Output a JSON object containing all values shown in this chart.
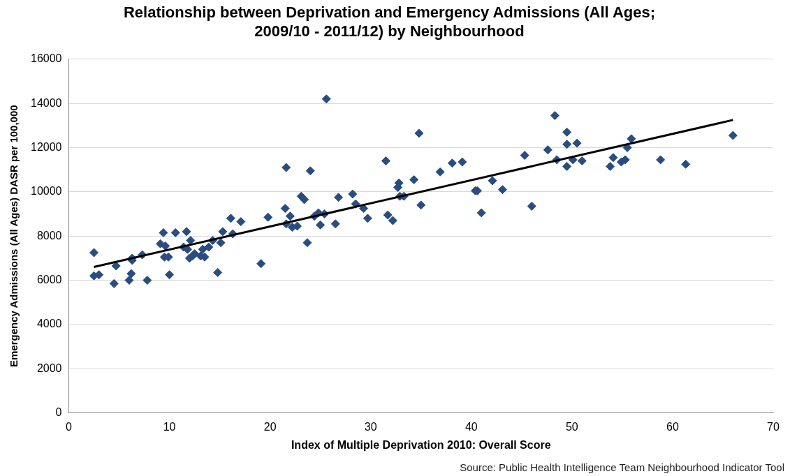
{
  "chart_data": {
    "type": "scatter",
    "title": "Relationship between Deprivation and Emergency Admissions (All Ages;\n2009/10 - 2011/12) by Neighbourhood",
    "xlabel": "Index of Multiple Deprivation 2010: Overall Score",
    "ylabel": "Emergency Admissions (All Ages) DASR per 100,000",
    "xlim": [
      0,
      70
    ],
    "xticks": [
      0,
      10,
      20,
      30,
      40,
      50,
      60,
      70
    ],
    "ylim": [
      0,
      16000
    ],
    "yticks": [
      0,
      2000,
      4000,
      6000,
      8000,
      10000,
      12000,
      14000,
      16000
    ],
    "grid": "y",
    "legend": false,
    "marker": "diamond",
    "annotations": [
      "Source: Public Health Intelligence Team Neighbourhood Indicator Tool"
    ],
    "series": [
      {
        "color": "#2a4d80",
        "x": [
          2.5,
          2.5,
          3,
          4.5,
          4.7,
          6,
          6.2,
          6.3,
          6.3,
          7.3,
          7.8,
          9.1,
          9.4,
          9.5,
          9.6,
          9.9,
          10,
          10.6,
          11.4,
          11.7,
          11.8,
          12,
          12.1,
          12.3,
          12.5,
          13.1,
          13.3,
          13.5,
          13.9,
          14.3,
          14.8,
          15.1,
          15.3,
          16.1,
          16.3,
          17.1,
          19.1,
          19.8,
          21.5,
          21.6,
          21.6,
          22,
          22.2,
          22.7,
          23.1,
          23.4,
          23.7,
          24,
          24.4,
          24.8,
          25,
          25.4,
          25.6,
          26.5,
          26.8,
          28.2,
          28.5,
          29.3,
          29.7,
          31.5,
          31.7,
          32.2,
          32.7,
          32.8,
          32.9,
          33.3,
          34.3,
          34.8,
          35,
          36.9,
          38.1,
          39.1,
          40.4,
          40.6,
          41,
          42.1,
          43.1,
          45.3,
          46,
          47.6,
          48.3,
          48.5,
          49.5,
          49.5,
          49.5,
          50.1,
          50.5,
          51,
          53.8,
          54.1,
          54.9,
          55.3,
          55.5,
          55.9,
          58.8,
          61.3,
          66
        ],
        "values": [
          7250,
          6200,
          6250,
          5850,
          6650,
          6000,
          6300,
          7000,
          6900,
          7150,
          6000,
          7650,
          8150,
          7050,
          7550,
          7050,
          6250,
          8150,
          7500,
          8200,
          7400,
          7000,
          7800,
          7100,
          7200,
          7100,
          7400,
          7050,
          7500,
          7800,
          6350,
          7700,
          8200,
          8800,
          8100,
          8650,
          6750,
          8850,
          9250,
          11100,
          8550,
          8900,
          8400,
          8450,
          9800,
          9650,
          7700,
          10950,
          8900,
          9050,
          8500,
          9000,
          14200,
          8550,
          9750,
          9900,
          9450,
          9250,
          8800,
          11400,
          8950,
          8700,
          10200,
          10400,
          9800,
          9800,
          10550,
          12650,
          9400,
          10900,
          11300,
          11350,
          10050,
          10050,
          9050,
          10500,
          10100,
          11650,
          9350,
          11900,
          13450,
          11450,
          12700,
          12150,
          11150,
          11450,
          12200,
          11400,
          11150,
          11550,
          11350,
          11450,
          12000,
          12400,
          11450,
          11250,
          12550
        ]
      },
      {
        "type": "line",
        "color": "#000000",
        "marker": "none",
        "x": [
          2.5,
          66
        ],
        "values": [
          6600,
          13250
        ]
      }
    ]
  }
}
